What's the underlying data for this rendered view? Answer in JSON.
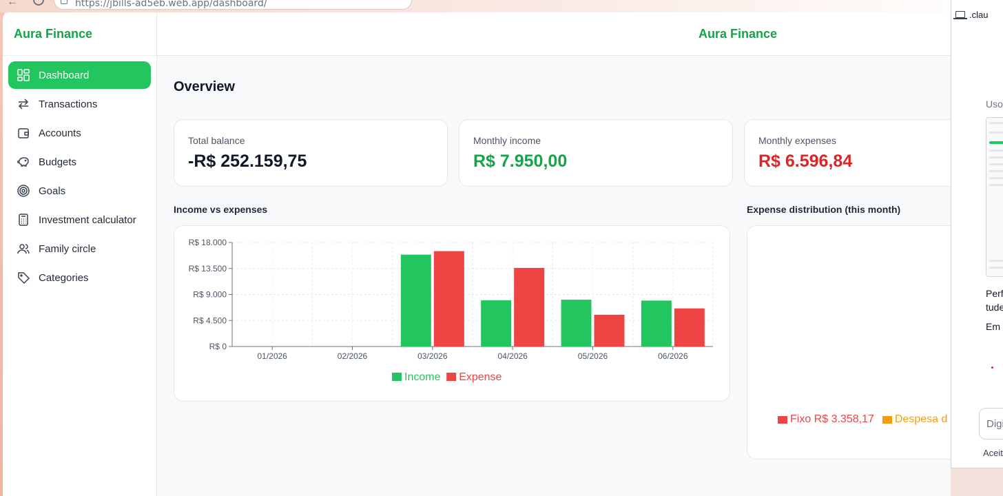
{
  "browser": {
    "url": "https://jbills-ad5eb.web.app/dashboard/"
  },
  "app": {
    "brand": "Aura Finance",
    "header_title": "Aura Finance"
  },
  "sidebar": {
    "items": [
      {
        "label": "Dashboard",
        "icon": "dashboard-grid-icon",
        "active": true
      },
      {
        "label": "Transactions",
        "icon": "arrows-swap-icon",
        "active": false
      },
      {
        "label": "Accounts",
        "icon": "wallet-icon",
        "active": false
      },
      {
        "label": "Budgets",
        "icon": "piggy-bank-icon",
        "active": false
      },
      {
        "label": "Goals",
        "icon": "target-icon",
        "active": false
      },
      {
        "label": "Investment calculator",
        "icon": "calculator-icon",
        "active": false
      },
      {
        "label": "Family circle",
        "icon": "users-icon",
        "active": false
      },
      {
        "label": "Categories",
        "icon": "tag-icon",
        "active": false
      }
    ]
  },
  "main": {
    "title": "Overview",
    "stats": [
      {
        "label": "Total balance",
        "value": "-R$ 252.159,75"
      },
      {
        "label": "Monthly income",
        "value": "R$ 7.950,00"
      },
      {
        "label": "Monthly expenses",
        "value": "R$ 6.596,84"
      }
    ],
    "income_chart_title": "Income vs expenses",
    "expense_chart_title": "Expense distribution (this month)",
    "expense_legend": [
      {
        "label": "Fixo R$ 3.358,17",
        "color": "#ef4444"
      },
      {
        "label": "Despesa d",
        "color": "#f59e0b"
      }
    ]
  },
  "colors": {
    "accent": "#22c55e",
    "brand": "#16a34a",
    "income": "#22c55e",
    "expense": "#ef4444"
  },
  "chart_data": {
    "type": "bar",
    "categories": [
      "01/2026",
      "02/2026",
      "03/2026",
      "04/2026",
      "05/2026",
      "06/2026"
    ],
    "series": [
      {
        "name": "Income",
        "color": "#22c55e",
        "values": [
          0,
          0,
          15900,
          8000,
          8100,
          7950
        ]
      },
      {
        "name": "Expense",
        "color": "#ef4444",
        "values": [
          0,
          0,
          16500,
          13600,
          5500,
          6597
        ]
      }
    ],
    "yticks": [
      "R$ 0",
      "R$ 4.500",
      "R$ 9.000",
      "R$ 13.500",
      "R$ 18.000"
    ],
    "ytick_values": [
      0,
      4500,
      9000,
      13500,
      18000
    ],
    "ylim": [
      0,
      18000
    ],
    "grid": true,
    "legend_position": "bottom-center"
  },
  "side_panel": {
    "header": ".clau",
    "text1": "Uso",
    "text2a": "Perf",
    "text2b": "tude",
    "text3": "Em c",
    "input_placeholder": "Digi",
    "text4": "Aceit"
  }
}
